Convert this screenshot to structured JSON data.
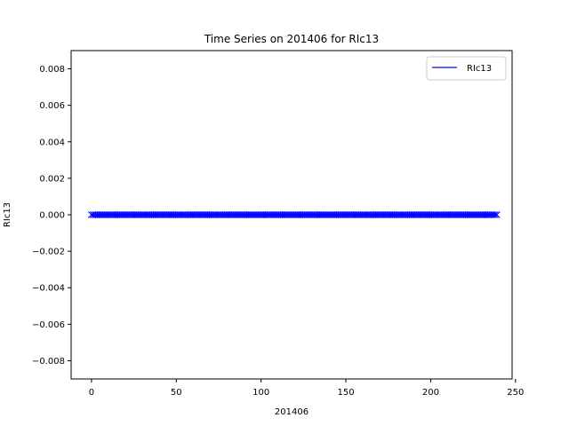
{
  "chart_data": {
    "type": "line",
    "title": "Time Series on 201406 for RIc13",
    "xlabel": "201406",
    "ylabel": "RIc13",
    "xlim": [
      -12,
      248
    ],
    "ylim": [
      -0.009,
      0.009
    ],
    "x_ticks": [
      0,
      50,
      100,
      150,
      200,
      250
    ],
    "x_tick_labels": [
      "0",
      "50",
      "100",
      "150",
      "200",
      "250"
    ],
    "y_ticks": [
      -0.008,
      -0.006,
      -0.004,
      -0.002,
      0.0,
      0.002,
      0.004,
      0.006,
      0.008
    ],
    "y_tick_labels": [
      "−0.008",
      "−0.006",
      "−0.004",
      "−0.002",
      "0.000",
      "0.002",
      "0.004",
      "0.006",
      "0.008"
    ],
    "grid": false,
    "legend_position": "top-right",
    "series": [
      {
        "name": "RIc13",
        "color": "#0000ff",
        "marker": "x",
        "x_start": 0,
        "x_end": 239,
        "x_step": 1,
        "constant_y": 0.0
      }
    ]
  }
}
